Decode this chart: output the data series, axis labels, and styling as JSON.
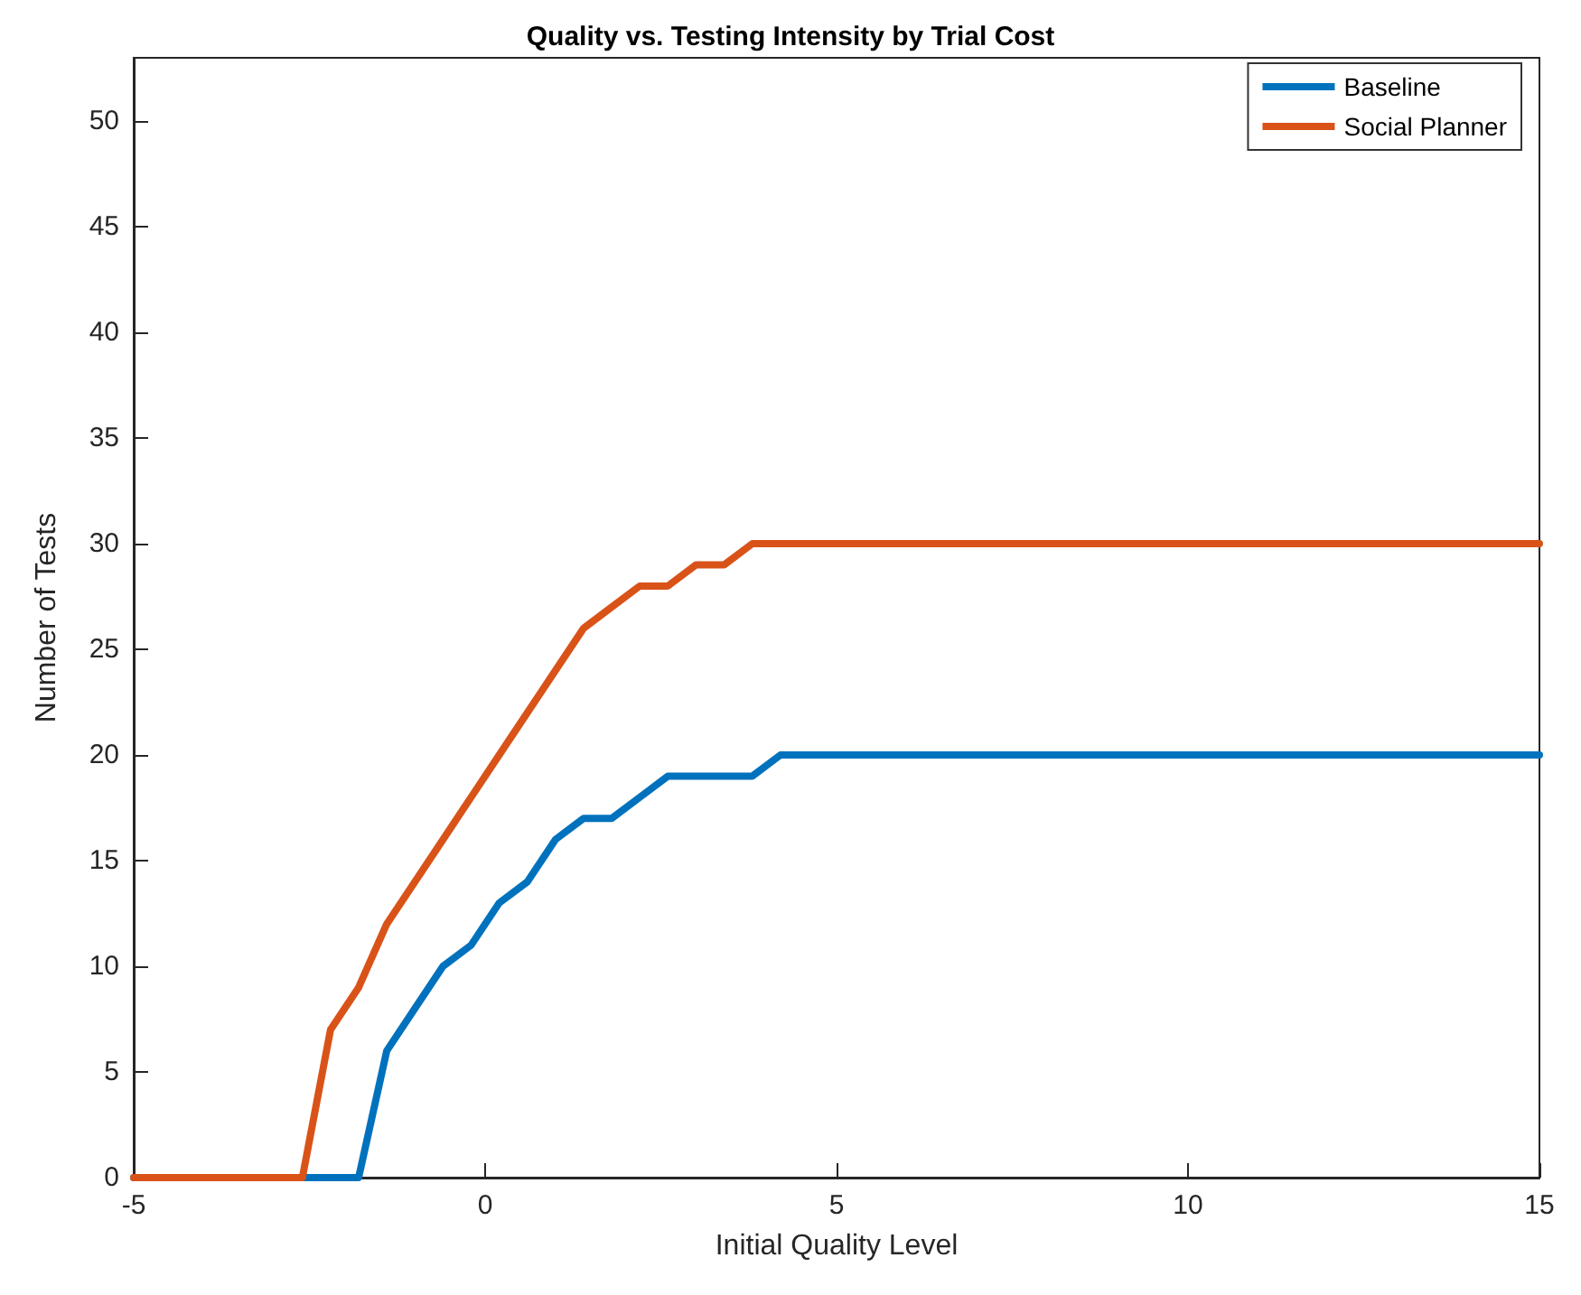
{
  "chart_data": {
    "type": "line",
    "title": "Quality vs. Testing Intensity by Trial Cost",
    "xlabel": "Initial Quality Level",
    "ylabel": "Number of Tests",
    "x": [
      -5,
      -2.6,
      -2.2,
      -1.8,
      -1.4,
      -1.0,
      -0.6,
      -0.2,
      0.2,
      0.6,
      1.0,
      1.4,
      1.8,
      2.2,
      2.6,
      3.0,
      3.4,
      3.8,
      4.2,
      15
    ],
    "series": [
      {
        "name": "Baseline",
        "color": "#0072bd",
        "values": [
          0,
          0,
          0,
          0,
          6,
          8,
          10,
          11,
          13,
          14,
          16,
          17,
          17,
          18,
          19,
          19,
          19,
          19,
          20,
          20
        ]
      },
      {
        "name": "Social Planner",
        "color": "#d95319",
        "values": [
          0,
          0,
          7,
          9,
          12,
          14,
          16,
          18,
          20,
          22,
          24,
          26,
          27,
          28,
          28,
          29,
          29,
          30,
          30,
          30
        ]
      }
    ],
    "xlim": [
      -5,
      15
    ],
    "xticks": [
      -5,
      0,
      5,
      10,
      15
    ],
    "ylim": [
      0,
      53
    ],
    "yticks": [
      0,
      5,
      10,
      15,
      20,
      25,
      30,
      35,
      40,
      45,
      50
    ],
    "grid": false,
    "legend": "top right",
    "marker": "none",
    "line_style": "solid"
  }
}
